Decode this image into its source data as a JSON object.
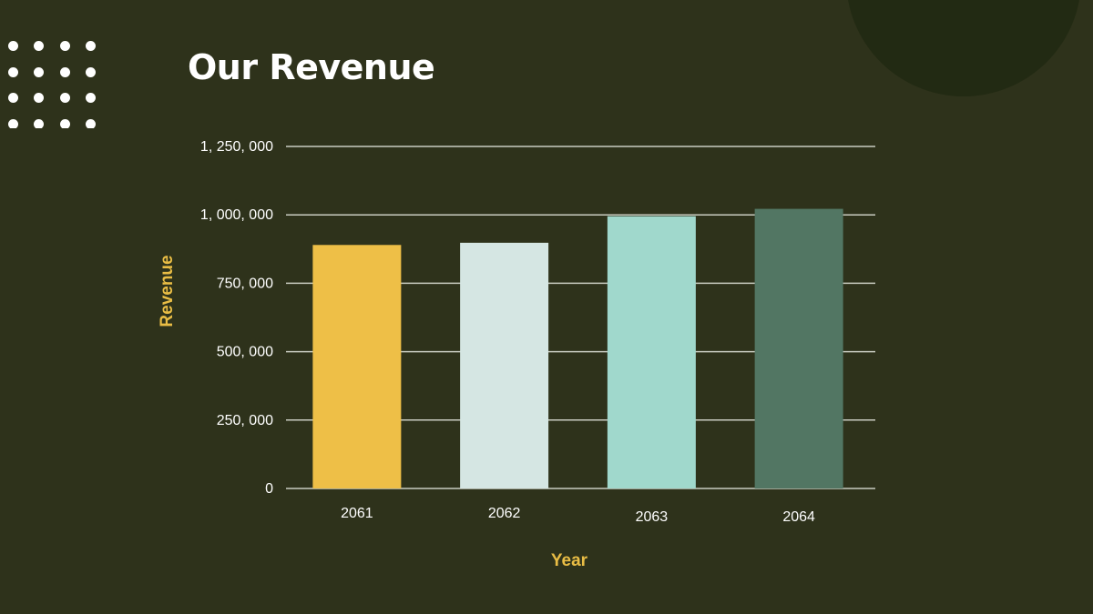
{
  "title": "Our Revenue",
  "colors": {
    "background": "#2e321b",
    "corner_circle": "#222a13",
    "gridline": "#c9ccc1",
    "text": "#ffffff",
    "axis_title": "#e9bd45"
  },
  "chart_data": {
    "type": "bar",
    "title": "Our Revenue",
    "xlabel": "Year",
    "ylabel": "Revenue",
    "categories": [
      "2061",
      "2062",
      "2063",
      "2064"
    ],
    "values": [
      890000,
      898000,
      995000,
      1022000
    ],
    "bar_colors": [
      "#eebf47",
      "#d5e6e3",
      "#a0d8cc",
      "#527663"
    ],
    "ylim": [
      0,
      1250000
    ],
    "y_ticks": [
      0,
      250000,
      500000,
      750000,
      1000000,
      1250000
    ],
    "y_tick_labels": [
      "0",
      "250, 000",
      "500, 000",
      "750, 000",
      "1, 000, 000",
      "1, 250, 000"
    ],
    "grid": true,
    "legend": "none"
  }
}
